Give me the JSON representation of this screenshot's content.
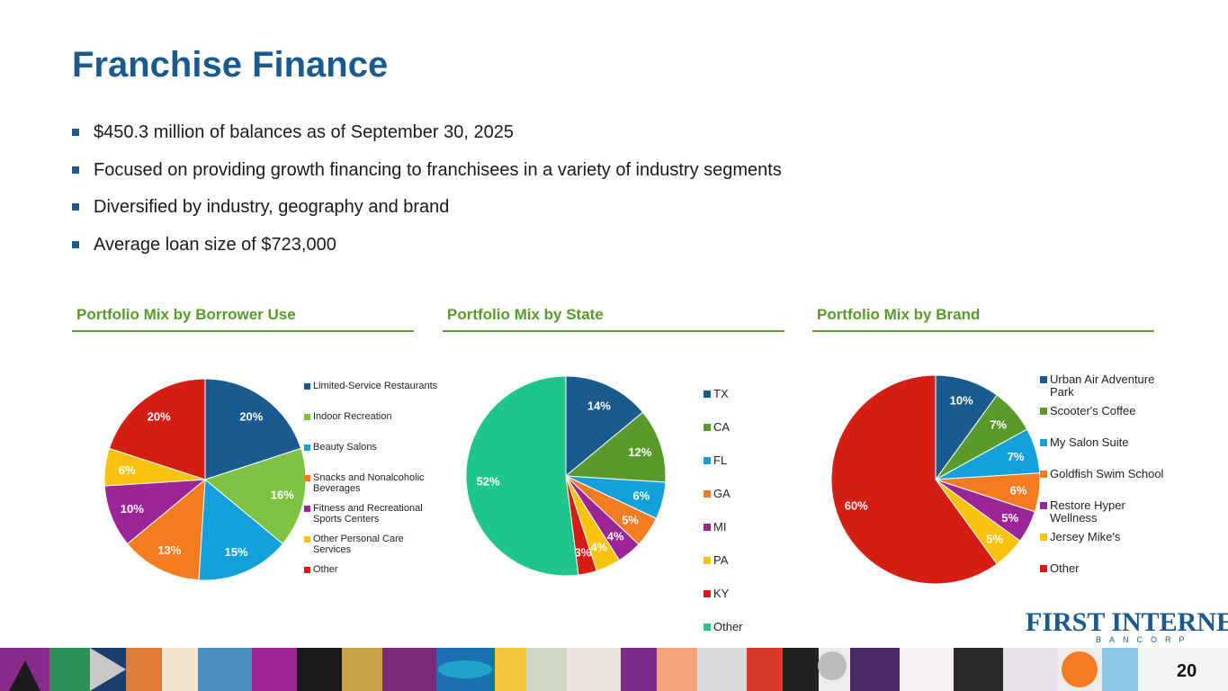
{
  "page": {
    "title": "Franchise Finance",
    "bullets": [
      "$450.3 million of balances as of September 30, 2025",
      "Focused on providing growth financing to franchisees in a variety of industry segments",
      "Diversified by industry, geography and brand",
      "Average loan size of $723,000"
    ],
    "page_number": "20",
    "accent_color": "#1b5a8e",
    "section_color": "#5a9a2c"
  },
  "logo": {
    "main": "FIRST INTERNET",
    "sub": "BANCORP"
  },
  "chart_data": [
    {
      "type": "pie",
      "title": "Portfolio Mix by Borrower Use",
      "categories": [
        "Limited-Service Restaurants",
        "Indoor Recreation",
        "Beauty Salons",
        "Snacks and Nonalcoholic Beverages",
        "Fitness and Recreational Sports Centers",
        "Other Personal Care Services",
        "Other"
      ],
      "values": [
        20,
        16,
        15,
        13,
        10,
        6,
        20
      ],
      "labels": [
        "20%",
        "16%",
        "15%",
        "13%",
        "10%",
        "6%",
        "20%"
      ],
      "colors": [
        "#1a5a8f",
        "#7fc241",
        "#14a0db",
        "#f57b20",
        "#9b2596",
        "#f9c30c",
        "#d41e13"
      ],
      "legend": "right"
    },
    {
      "type": "pie",
      "title": "Portfolio Mix by State",
      "categories": [
        "TX",
        "CA",
        "FL",
        "GA",
        "MI",
        "PA",
        "KY",
        "Other"
      ],
      "values": [
        14,
        12,
        6,
        5,
        4,
        4,
        3,
        52
      ],
      "labels": [
        "14%",
        "12%",
        "6%",
        "5%",
        "4%",
        "4%",
        "3%",
        "52%"
      ],
      "colors": [
        "#1a5a8f",
        "#5a9a2c",
        "#14a0db",
        "#f57b20",
        "#9b2596",
        "#f9c30c",
        "#d41e13",
        "#1fc68c"
      ],
      "legend": "right"
    },
    {
      "type": "pie",
      "title": "Portfolio Mix by Brand",
      "categories": [
        "Urban Air Adventure Park",
        "Scooter's Coffee",
        "My Salon Suite",
        "Goldfish Swim School",
        "Restore Hyper Wellness",
        "Jersey Mike's",
        "Other"
      ],
      "values": [
        10,
        7,
        7,
        6,
        5,
        5,
        60
      ],
      "labels": [
        "10%",
        "7%",
        "7%",
        "6%",
        "5%",
        "5%",
        "60%"
      ],
      "colors": [
        "#1a5a8f",
        "#5a9a2c",
        "#14a0db",
        "#f57b20",
        "#9b2596",
        "#f9c30c",
        "#d41e13"
      ],
      "legend": "right"
    }
  ]
}
